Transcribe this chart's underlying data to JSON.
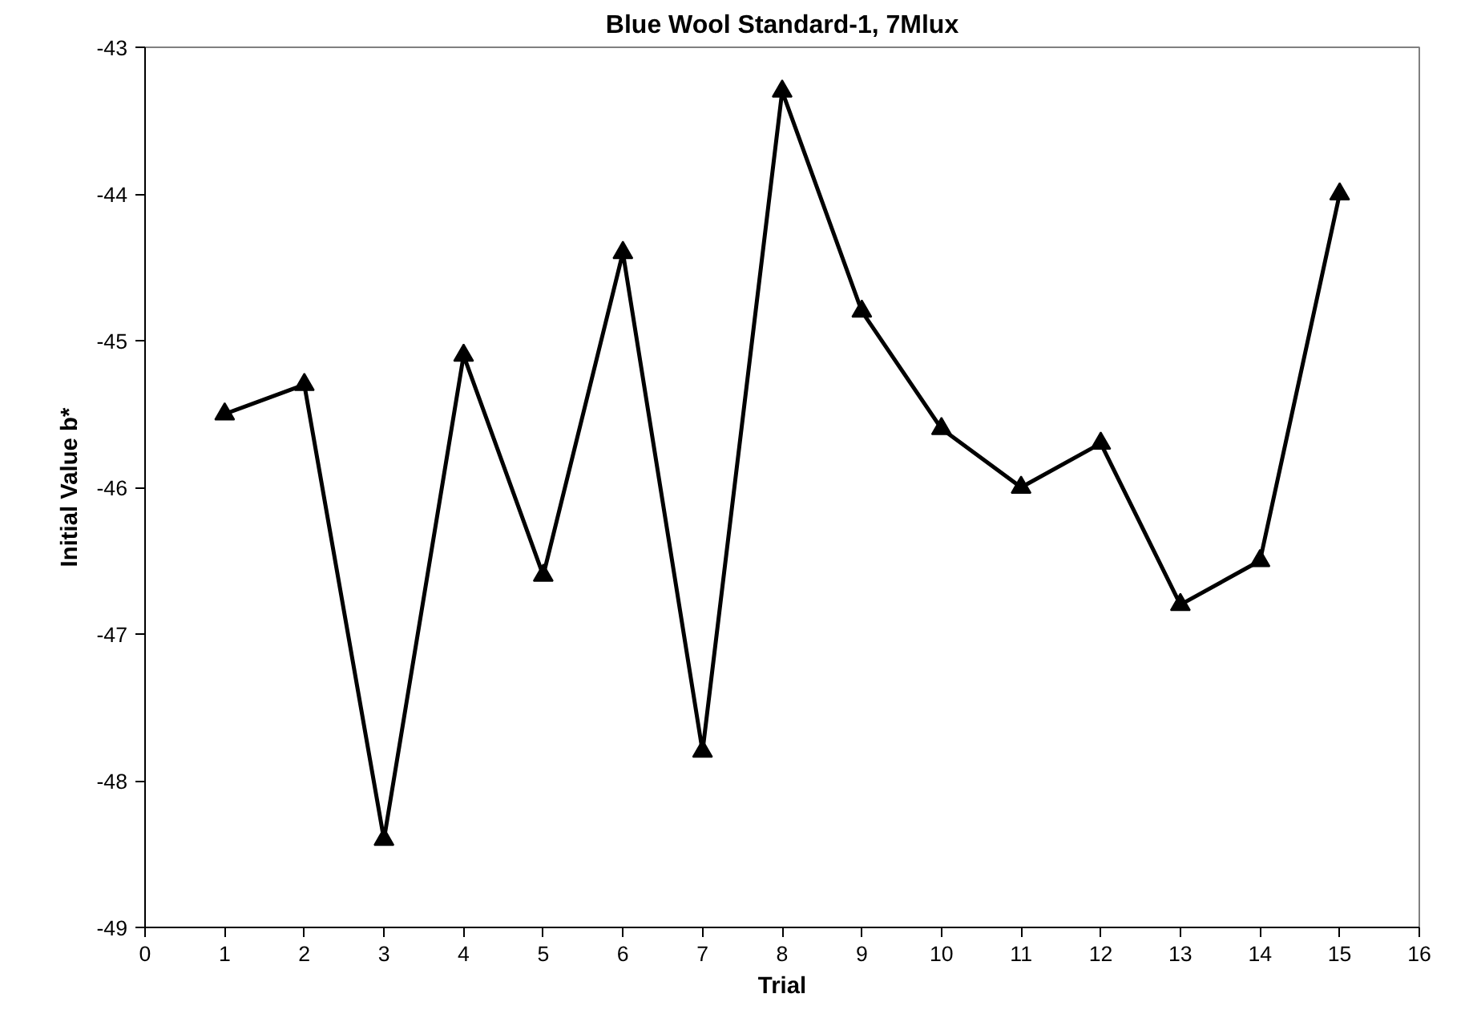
{
  "chart_data": {
    "type": "line",
    "title": "Blue Wool Standard-1, 7Mlux",
    "xlabel": "Trial",
    "ylabel": "Initial Value b*",
    "x": [
      1,
      2,
      3,
      4,
      5,
      6,
      7,
      8,
      9,
      10,
      11,
      12,
      13,
      14,
      15
    ],
    "series": [
      {
        "color": "#000000",
        "values": [
          -45.5,
          -45.3,
          -48.4,
          -45.1,
          -46.6,
          -44.4,
          -47.8,
          -43.3,
          -44.8,
          -45.6,
          -46.0,
          -45.7,
          -46.8,
          -46.5,
          -44.0
        ]
      }
    ],
    "xlim": [
      0,
      16
    ],
    "xticks": [
      0,
      1,
      2,
      3,
      4,
      5,
      6,
      7,
      8,
      9,
      10,
      11,
      12,
      13,
      14,
      15,
      16
    ],
    "ylim": [
      -49,
      -43
    ],
    "yticks": [
      -49,
      -48,
      -47,
      -46,
      -45,
      -44,
      -43
    ],
    "grid": false,
    "marker": "triangle",
    "line_style": "solid"
  }
}
